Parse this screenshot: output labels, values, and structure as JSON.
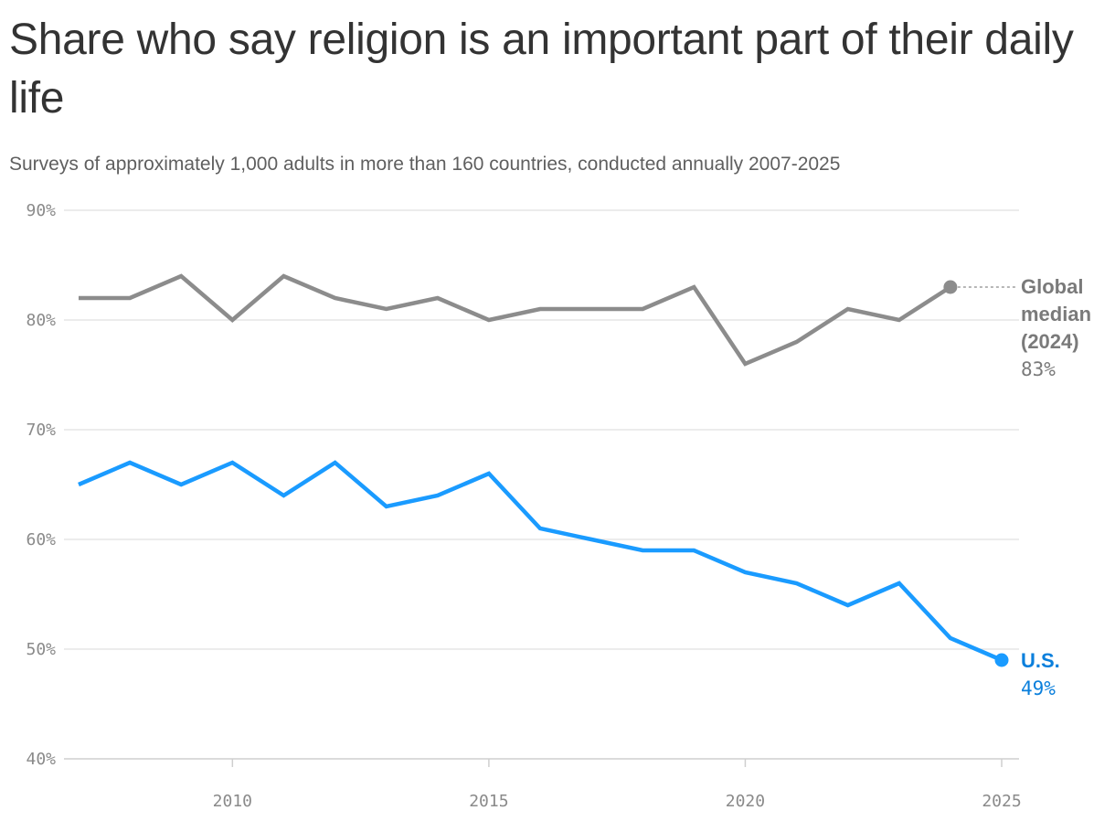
{
  "title": "Share who say religion is an important part of their daily life",
  "subtitle": "Surveys of approximately 1,000 adults in more than 160 countries, conducted annually 2007-2025",
  "chart_data": {
    "type": "line",
    "x_range": [
      2007,
      2025
    ],
    "ylim": [
      40,
      90
    ],
    "y_ticks": [
      40,
      50,
      60,
      70,
      80,
      90
    ],
    "y_tick_labels": [
      "40%",
      "50%",
      "60%",
      "70%",
      "80%",
      "90%"
    ],
    "x_ticks": [
      2010,
      2015,
      2020,
      2025
    ],
    "x_tick_labels": [
      "2010",
      "2015",
      "2020",
      "2025"
    ],
    "grid": true,
    "series": [
      {
        "key": "global",
        "color": "#8c8c8c",
        "label_color": "#7a7a7a",
        "label_lines": [
          "Global",
          "median",
          "(2024)"
        ],
        "end_value_label": "83%",
        "x": [
          2007,
          2008,
          2009,
          2010,
          2011,
          2012,
          2013,
          2014,
          2015,
          2016,
          2017,
          2018,
          2019,
          2020,
          2021,
          2022,
          2023,
          2024
        ],
        "values": [
          82,
          82,
          84,
          80,
          84,
          82,
          81,
          82,
          80,
          81,
          81,
          81,
          83,
          76,
          78,
          81,
          80,
          83
        ]
      },
      {
        "key": "us",
        "color": "#1a9bff",
        "label_color": "#0a7fdc",
        "label_lines": [
          "U.S."
        ],
        "end_value_label": "49%",
        "x": [
          2007,
          2008,
          2009,
          2010,
          2011,
          2012,
          2013,
          2014,
          2015,
          2016,
          2017,
          2018,
          2019,
          2020,
          2021,
          2022,
          2023,
          2024,
          2025
        ],
        "values": [
          65,
          67,
          65,
          67,
          64,
          67,
          63,
          64,
          66,
          61,
          60,
          59,
          59,
          57,
          56,
          54,
          56,
          51,
          49
        ]
      }
    ]
  }
}
